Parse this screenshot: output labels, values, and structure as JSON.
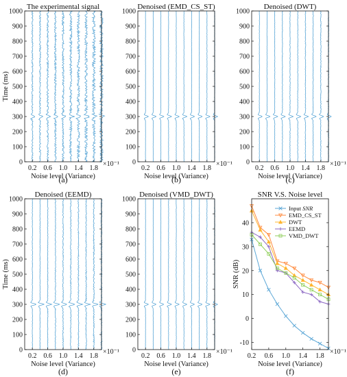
{
  "figure": {
    "panel_letters": [
      "(a)",
      "(b)",
      "(c)",
      "(d)",
      "(e)",
      "(f)"
    ]
  },
  "colors": {
    "trace": "#5aa6d6",
    "axis": "#111111"
  },
  "chart_data": [
    {
      "type": "line",
      "panel": "(a)",
      "title": "The experimental signal",
      "xlabel": "Noise level (Variance)",
      "ylabel": "Time (ms)",
      "x_multiplier": "×10⁻¹",
      "xticks": [
        "0.2",
        "0.6",
        "1.0",
        "1.4",
        "1.8"
      ],
      "xlim": [
        0,
        2.0
      ],
      "yticks": [
        0,
        100,
        200,
        300,
        400,
        500,
        600,
        700,
        800,
        900,
        1000
      ],
      "ylim": [
        0,
        1000
      ],
      "traces_at": [
        0.2,
        0.4,
        0.6,
        0.8,
        1.0,
        1.2,
        1.4,
        1.6,
        1.8,
        2.0
      ],
      "event_time_ms": 300,
      "noise_amplitude": 0.9,
      "wavelet_amplitude": 1.0
    },
    {
      "type": "line",
      "panel": "(b)",
      "title": "Denoised (EMD_CS_ST)",
      "xlabel": "Noise level (Variance)",
      "ylabel": "",
      "x_multiplier": "×10⁻¹",
      "xticks": [
        "0.2",
        "0.6",
        "1.0",
        "1.4",
        "1.8"
      ],
      "xlim": [
        0,
        2.0
      ],
      "yticks": [
        0,
        100,
        200,
        300,
        400,
        500,
        600,
        700,
        800,
        900,
        1000
      ],
      "ylim": [
        0,
        1000
      ],
      "traces_at": [
        0.2,
        0.4,
        0.6,
        0.8,
        1.0,
        1.2,
        1.4,
        1.6,
        1.8,
        2.0
      ],
      "event_time_ms": 300,
      "noise_amplitude": 0.12,
      "wavelet_amplitude": 1.0
    },
    {
      "type": "line",
      "panel": "(c)",
      "title": "Denoised (DWT)",
      "xlabel": "Noise level (Variance)",
      "ylabel": "",
      "x_multiplier": "×10⁻¹",
      "xticks": [
        "0.2",
        "0.6",
        "1.0",
        "1.4",
        "1.8"
      ],
      "xlim": [
        0,
        2.0
      ],
      "yticks": [
        0,
        100,
        200,
        300,
        400,
        500,
        600,
        700,
        800,
        900,
        1000
      ],
      "ylim": [
        0,
        1000
      ],
      "traces_at": [
        0.2,
        0.4,
        0.6,
        0.8,
        1.0,
        1.2,
        1.4,
        1.6,
        1.8,
        2.0
      ],
      "event_time_ms": 300,
      "noise_amplitude": 0.22,
      "wavelet_amplitude": 1.0
    },
    {
      "type": "line",
      "panel": "(d)",
      "title": "Denoised (EEMD)",
      "xlabel": "Noise level (Variance)",
      "ylabel": "Time (ms)",
      "x_multiplier": "×10⁻¹",
      "xticks": [
        "0.2",
        "0.6",
        "1.0",
        "1.4",
        "1.8"
      ],
      "xlim": [
        0,
        2.0
      ],
      "yticks": [
        0,
        100,
        200,
        300,
        400,
        500,
        600,
        700,
        800,
        900,
        1000
      ],
      "ylim": [
        0,
        1000
      ],
      "traces_at": [
        0.2,
        0.4,
        0.6,
        0.8,
        1.0,
        1.2,
        1.4,
        1.6,
        1.8,
        2.0
      ],
      "event_time_ms": 300,
      "noise_amplitude": 0.35,
      "wavelet_amplitude": 1.3
    },
    {
      "type": "line",
      "panel": "(e)",
      "title": "Denoised (VMD_DWT)",
      "xlabel": "Noise level (Variance)",
      "ylabel": "",
      "x_multiplier": "×10⁻¹",
      "xticks": [
        "0.2",
        "0.6",
        "1.0",
        "1.4",
        "1.8"
      ],
      "xlim": [
        0,
        2.0
      ],
      "yticks": [
        0,
        100,
        200,
        300,
        400,
        500,
        600,
        700,
        800,
        900,
        1000
      ],
      "ylim": [
        0,
        1000
      ],
      "traces_at": [
        0.2,
        0.4,
        0.6,
        0.8,
        1.0,
        1.2,
        1.4,
        1.6,
        1.8,
        2.0
      ],
      "event_time_ms": 300,
      "noise_amplitude": 0.15,
      "wavelet_amplitude": 1.0
    },
    {
      "type": "line",
      "panel": "(f)",
      "title": "SNR V.S.  Noise level",
      "xlabel": "Noise level (Variance)",
      "ylabel": "SNR (dB)",
      "x_multiplier": "×10⁻¹",
      "xticks": [
        "0.2",
        "0.6",
        "1.0",
        "1.4",
        "1.8"
      ],
      "xlim": [
        0.2,
        2.0
      ],
      "yticks": [
        -10,
        0,
        10,
        20,
        30,
        40
      ],
      "ylim": [
        -13,
        50
      ],
      "legend_position": "upper-right",
      "x": [
        0.2,
        0.4,
        0.6,
        0.8,
        1.0,
        1.2,
        1.4,
        1.6,
        1.8,
        2.0
      ],
      "series": [
        {
          "name_plain": "Input ",
          "name_italic": "SNR",
          "color": "#5aa6d6",
          "marker": "x",
          "values": [
            33,
            20,
            12,
            6,
            1,
            -3,
            -6,
            -8.5,
            -10.5,
            -12.5
          ]
        },
        {
          "name": "EMD_CS_ST",
          "color": "#ff8a3d",
          "marker": "triangle-down",
          "values": [
            47,
            38,
            35,
            24,
            23,
            21,
            18,
            16,
            15,
            13
          ]
        },
        {
          "name": "DWT",
          "color": "#ffb52e",
          "marker": "triangle-up",
          "values": [
            45,
            37,
            32,
            23,
            21,
            18,
            16,
            14,
            12,
            10
          ]
        },
        {
          "name": "EEMD",
          "color": "#8a66c2",
          "marker": "plus",
          "values": [
            36,
            34,
            30,
            20,
            19,
            15,
            11,
            10,
            7,
            6
          ]
        },
        {
          "name": "VMD_DWT",
          "color": "#8fce5a",
          "marker": "square",
          "values": [
            35,
            31,
            27,
            21,
            19,
            17,
            14,
            12,
            10,
            8
          ]
        }
      ]
    }
  ]
}
